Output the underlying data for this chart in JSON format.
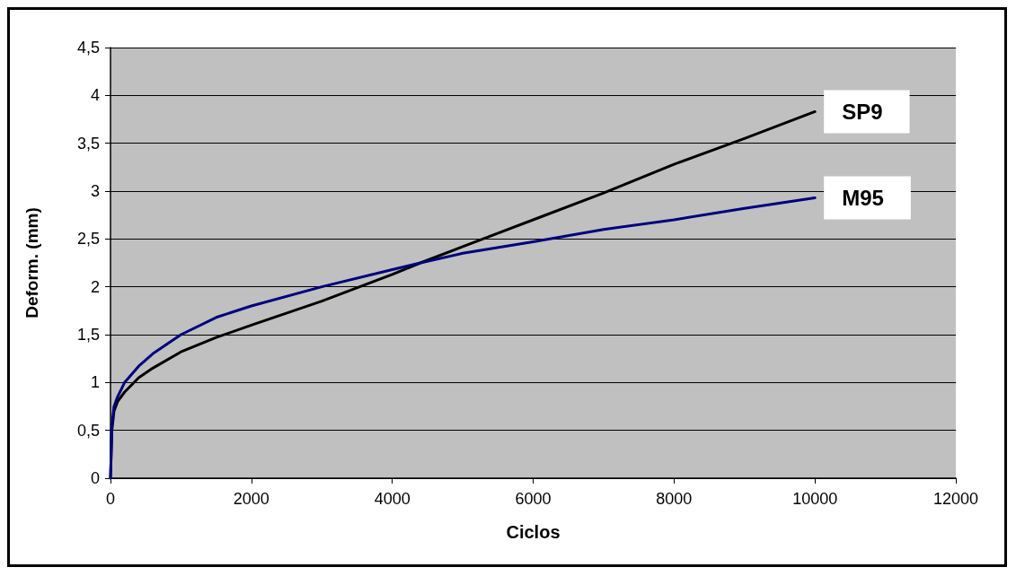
{
  "chart_data": {
    "type": "line",
    "xlabel": "Ciclos",
    "ylabel": "Deform. (mm)",
    "xlim": [
      0,
      12000
    ],
    "xticks": [
      0,
      2000,
      4000,
      6000,
      8000,
      10000,
      12000
    ],
    "ylim": [
      0,
      4.5
    ],
    "yticks": [
      0,
      {
        "value": 0.5,
        "label": "0,5"
      },
      1,
      {
        "value": 1.5,
        "label": "1,5"
      },
      2,
      {
        "value": 2.5,
        "label": "2,5"
      },
      3,
      {
        "value": 3.5,
        "label": "3,5"
      },
      4,
      {
        "value": 4.5,
        "label": "4,5"
      }
    ],
    "grid": "y",
    "marker": "none",
    "line_style": "solid",
    "x": [
      0,
      20,
      50,
      100,
      200,
      400,
      600,
      1000,
      1500,
      2000,
      3000,
      4000,
      4400,
      5000,
      6000,
      7000,
      8000,
      9000,
      10000
    ],
    "series": [
      {
        "name": "SP9",
        "color": "#000000",
        "values": [
          0,
          0.5,
          0.7,
          0.8,
          0.9,
          1.05,
          1.15,
          1.32,
          1.47,
          1.6,
          1.85,
          2.13,
          2.25,
          2.42,
          2.7,
          2.98,
          3.28,
          3.55,
          3.83
        ]
      },
      {
        "name": "M95",
        "color": "#00007f",
        "values": [
          0,
          0.55,
          0.75,
          0.85,
          1.0,
          1.17,
          1.3,
          1.5,
          1.68,
          1.8,
          2.0,
          2.18,
          2.25,
          2.35,
          2.47,
          2.6,
          2.7,
          2.82,
          2.93
        ]
      }
    ]
  }
}
